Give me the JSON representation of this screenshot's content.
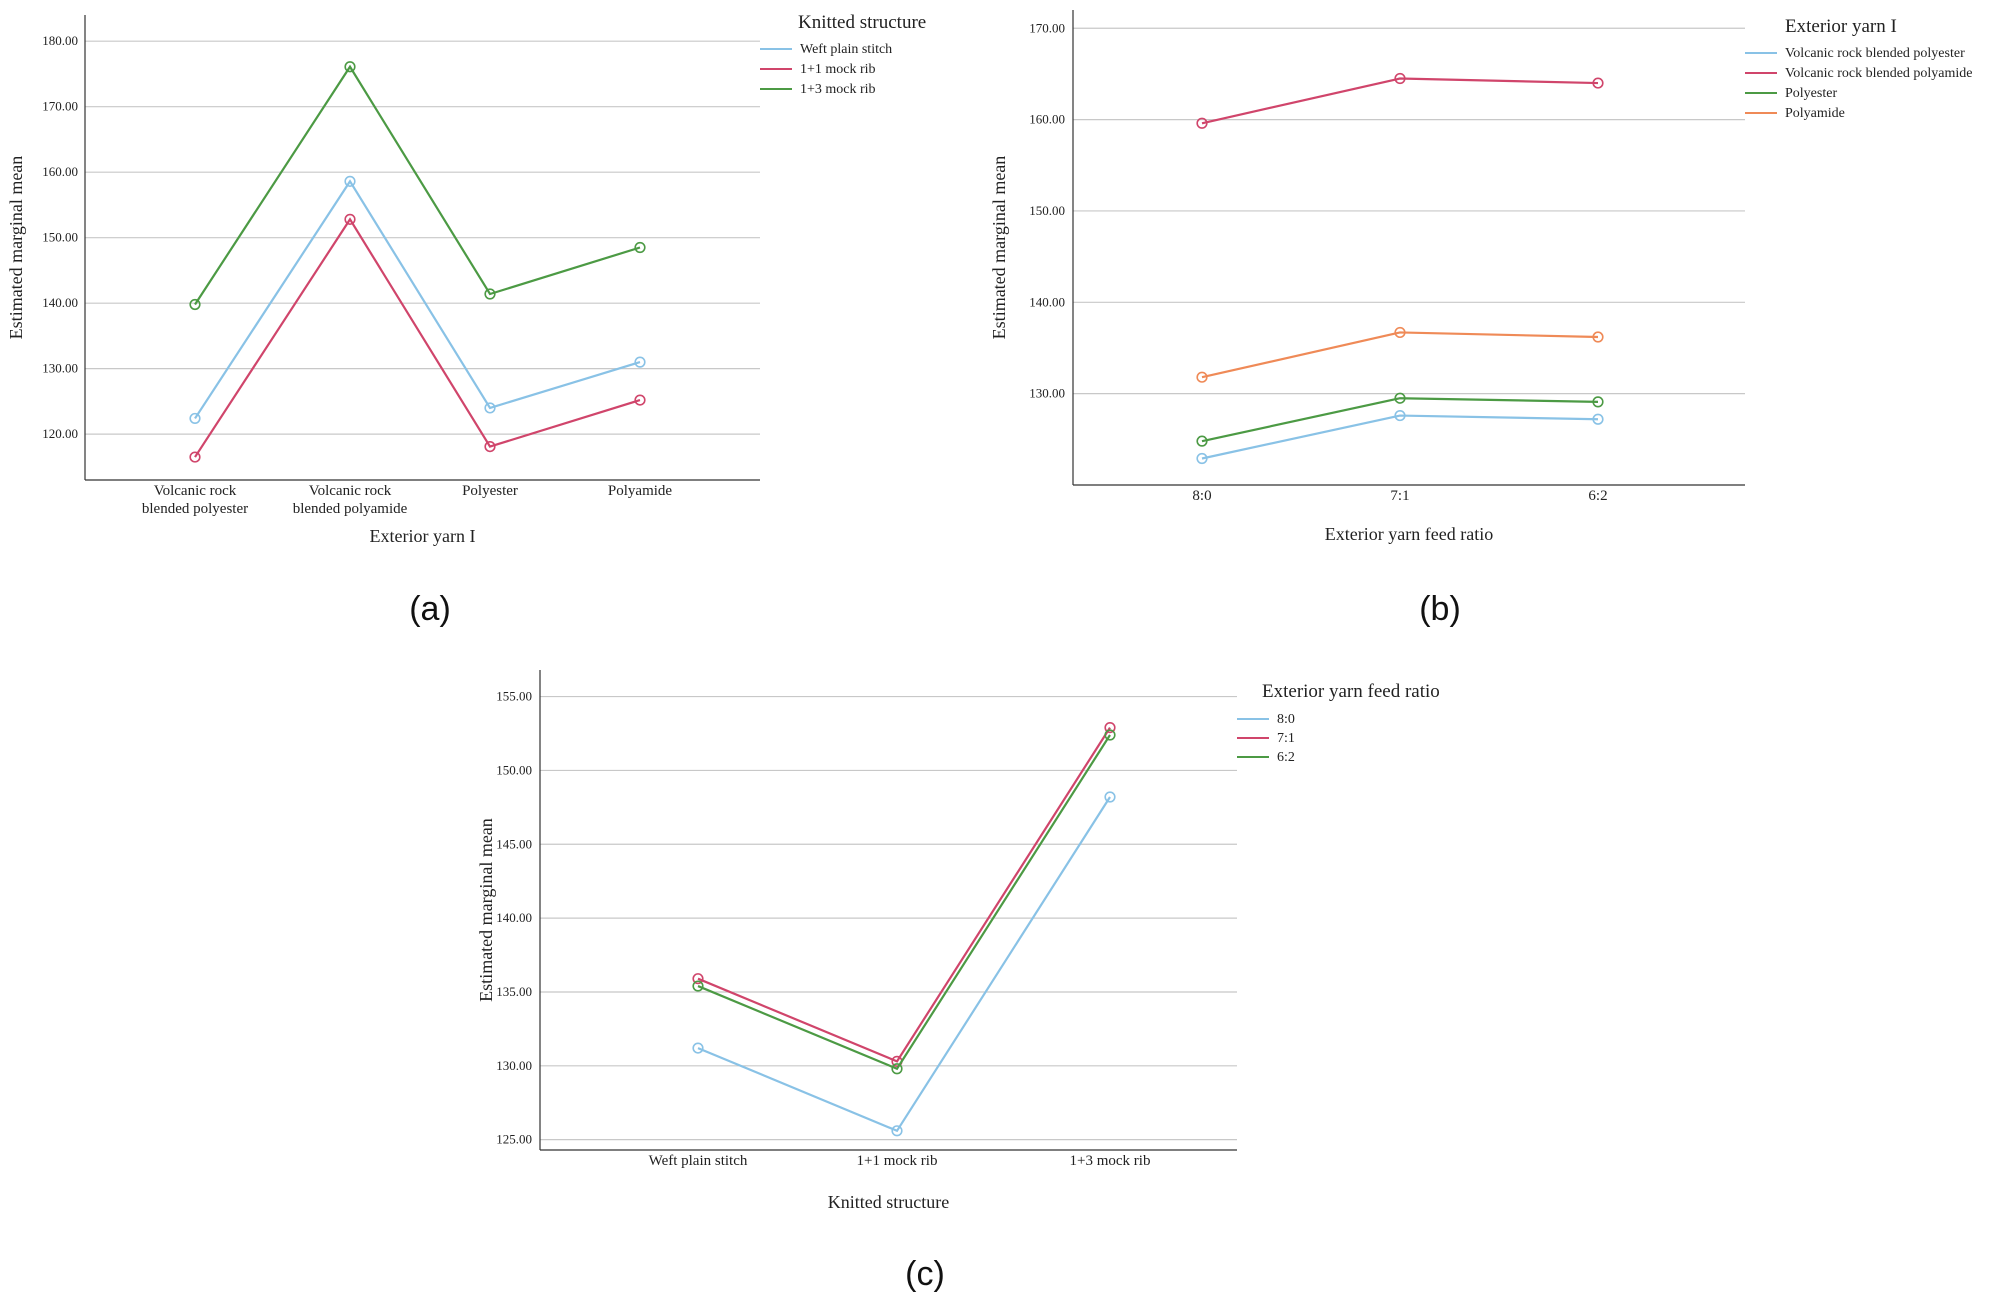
{
  "chart_data": [
    {
      "id": "a",
      "type": "line",
      "panel_label": "(a)",
      "ylabel": "Estimated marginal mean",
      "xlabel": "Exterior yarn  I",
      "ylim": [
        113,
        184
      ],
      "yticks": [
        "120.00",
        "130.00",
        "140.00",
        "150.00",
        "160.00",
        "170.00",
        "180.00"
      ],
      "categories": [
        [
          "Volcanic rock",
          "blended polyester"
        ],
        [
          "Volcanic rock",
          "blended polyamide"
        ],
        [
          "Polyester"
        ],
        [
          "Polyamide"
        ]
      ],
      "legend_title": "Knitted structure",
      "series": [
        {
          "name": "Weft plain stitch",
          "color": "#89c2e6",
          "values": [
            122.4,
            158.6,
            124.0,
            131.0
          ]
        },
        {
          "name": "1+1 mock rib",
          "color": "#d0456b",
          "values": [
            116.5,
            152.8,
            118.1,
            125.2
          ]
        },
        {
          "name": "1+3 mock rib",
          "color": "#4c9a44",
          "values": [
            139.8,
            176.1,
            141.4,
            148.5
          ]
        }
      ]
    },
    {
      "id": "b",
      "type": "line",
      "panel_label": "(b)",
      "ylabel": "Estimated marginal mean",
      "xlabel": "Exterior yarn feed ratio",
      "ylim": [
        120,
        172
      ],
      "yticks": [
        "130.00",
        "140.00",
        "150.00",
        "160.00",
        "170.00"
      ],
      "categories": [
        [
          "8:0"
        ],
        [
          "7:1"
        ],
        [
          "6:2"
        ]
      ],
      "legend_title": "Exterior yarn  I",
      "series": [
        {
          "name": "Volcanic rock blended polyester",
          "color": "#89c2e6",
          "values": [
            122.9,
            127.6,
            127.2
          ]
        },
        {
          "name": "Volcanic rock blended polyamide",
          "color": "#d0456b",
          "values": [
            159.6,
            164.5,
            164.0
          ]
        },
        {
          "name": "Polyester",
          "color": "#4c9a44",
          "values": [
            124.8,
            129.5,
            129.1
          ]
        },
        {
          "name": "Polyamide",
          "color": "#ef8a57",
          "values": [
            131.8,
            136.7,
            136.2
          ]
        }
      ]
    },
    {
      "id": "c",
      "type": "line",
      "panel_label": "(c)",
      "ylabel": "Estimated marginal mean",
      "xlabel": "Knitted structure",
      "ylim": [
        124.3,
        156.8
      ],
      "yticks": [
        "125.00",
        "130.00",
        "135.00",
        "140.00",
        "145.00",
        "150.00",
        "155.00"
      ],
      "categories": [
        [
          "Weft plain stitch"
        ],
        [
          "1+1 mock rib"
        ],
        [
          "1+3 mock rib"
        ]
      ],
      "legend_title": "Exterior yarn feed ratio",
      "series": [
        {
          "name": "8:0",
          "color": "#89c2e6",
          "values": [
            131.2,
            125.6,
            148.2
          ]
        },
        {
          "name": "7:1",
          "color": "#d0456b",
          "values": [
            135.9,
            130.3,
            152.9
          ]
        },
        {
          "name": "6:2",
          "color": "#4c9a44",
          "values": [
            135.4,
            129.8,
            152.4
          ]
        }
      ]
    }
  ]
}
